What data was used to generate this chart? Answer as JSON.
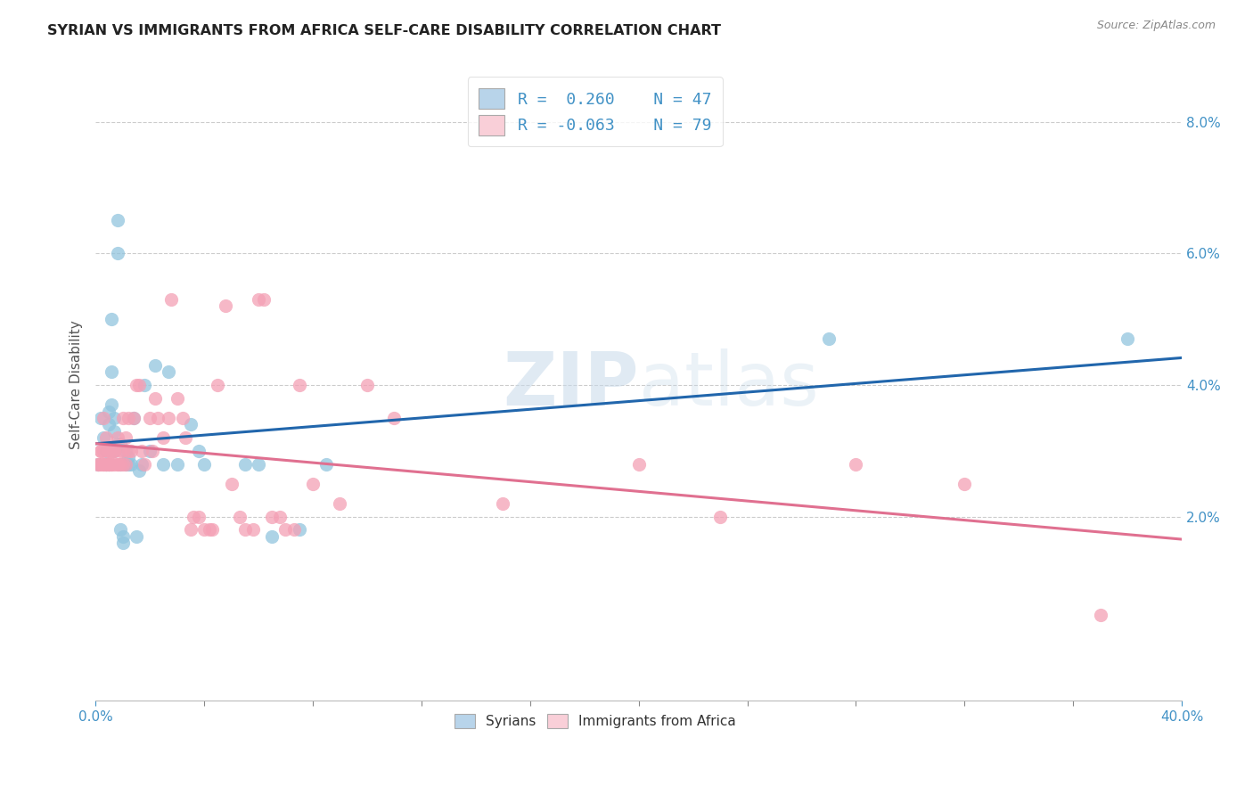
{
  "title": "SYRIAN VS IMMIGRANTS FROM AFRICA SELF-CARE DISABILITY CORRELATION CHART",
  "source": "Source: ZipAtlas.com",
  "ylabel": "Self-Care Disability",
  "x_min": 0.0,
  "x_max": 0.4,
  "y_min": -0.008,
  "y_max": 0.088,
  "blue_color": "#92c5de",
  "blue_line_color": "#2166ac",
  "pink_color": "#f4a0b5",
  "pink_line_color": "#e07090",
  "syrians_x": [
    0.001,
    0.002,
    0.003,
    0.004,
    0.004,
    0.005,
    0.005,
    0.005,
    0.006,
    0.006,
    0.006,
    0.007,
    0.007,
    0.007,
    0.008,
    0.008,
    0.008,
    0.009,
    0.009,
    0.009,
    0.01,
    0.01,
    0.011,
    0.011,
    0.012,
    0.012,
    0.013,
    0.014,
    0.015,
    0.016,
    0.017,
    0.018,
    0.02,
    0.022,
    0.025,
    0.027,
    0.03,
    0.035,
    0.038,
    0.04,
    0.055,
    0.06,
    0.065,
    0.075,
    0.085,
    0.27,
    0.38
  ],
  "syrians_y": [
    0.028,
    0.035,
    0.032,
    0.03,
    0.028,
    0.028,
    0.036,
    0.034,
    0.037,
    0.042,
    0.05,
    0.033,
    0.035,
    0.03,
    0.031,
    0.06,
    0.065,
    0.018,
    0.028,
    0.031,
    0.017,
    0.016,
    0.03,
    0.028,
    0.029,
    0.028,
    0.028,
    0.035,
    0.017,
    0.027,
    0.028,
    0.04,
    0.03,
    0.043,
    0.028,
    0.042,
    0.028,
    0.034,
    0.03,
    0.028,
    0.028,
    0.028,
    0.017,
    0.018,
    0.028,
    0.047,
    0.047
  ],
  "africa_x": [
    0.001,
    0.001,
    0.002,
    0.002,
    0.002,
    0.003,
    0.003,
    0.003,
    0.003,
    0.004,
    0.004,
    0.004,
    0.005,
    0.005,
    0.005,
    0.005,
    0.006,
    0.006,
    0.006,
    0.007,
    0.007,
    0.007,
    0.008,
    0.008,
    0.008,
    0.009,
    0.009,
    0.01,
    0.01,
    0.01,
    0.011,
    0.011,
    0.012,
    0.012,
    0.013,
    0.014,
    0.015,
    0.016,
    0.017,
    0.018,
    0.02,
    0.021,
    0.022,
    0.023,
    0.025,
    0.027,
    0.028,
    0.03,
    0.032,
    0.033,
    0.035,
    0.036,
    0.038,
    0.04,
    0.042,
    0.043,
    0.045,
    0.048,
    0.05,
    0.053,
    0.055,
    0.058,
    0.06,
    0.062,
    0.065,
    0.068,
    0.07,
    0.073,
    0.075,
    0.08,
    0.09,
    0.1,
    0.11,
    0.15,
    0.2,
    0.23,
    0.28,
    0.32,
    0.37
  ],
  "africa_y": [
    0.028,
    0.028,
    0.028,
    0.03,
    0.03,
    0.028,
    0.028,
    0.03,
    0.035,
    0.028,
    0.028,
    0.032,
    0.028,
    0.03,
    0.03,
    0.028,
    0.028,
    0.028,
    0.03,
    0.028,
    0.03,
    0.03,
    0.028,
    0.028,
    0.032,
    0.028,
    0.03,
    0.03,
    0.028,
    0.035,
    0.028,
    0.032,
    0.03,
    0.035,
    0.03,
    0.035,
    0.04,
    0.04,
    0.03,
    0.028,
    0.035,
    0.03,
    0.038,
    0.035,
    0.032,
    0.035,
    0.053,
    0.038,
    0.035,
    0.032,
    0.018,
    0.02,
    0.02,
    0.018,
    0.018,
    0.018,
    0.04,
    0.052,
    0.025,
    0.02,
    0.018,
    0.018,
    0.053,
    0.053,
    0.02,
    0.02,
    0.018,
    0.018,
    0.04,
    0.025,
    0.022,
    0.04,
    0.035,
    0.022,
    0.028,
    0.02,
    0.028,
    0.025,
    0.005
  ]
}
